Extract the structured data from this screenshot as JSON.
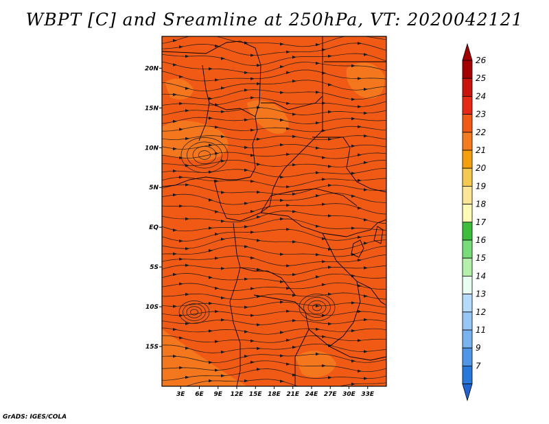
{
  "title": "WBPT [C] and Sreamline at 250hPa, VT: 2020042121",
  "credit": "GrADS: IGES/COLA",
  "map": {
    "lon_range": [
      0,
      36
    ],
    "lat_range": [
      -20,
      24
    ],
    "lat_ticks": [
      {
        "value": 20,
        "label": "20N"
      },
      {
        "value": 15,
        "label": "15N"
      },
      {
        "value": 10,
        "label": "10N"
      },
      {
        "value": 5,
        "label": "5N"
      },
      {
        "value": 0,
        "label": "EQ"
      },
      {
        "value": -5,
        "label": "5S"
      },
      {
        "value": -10,
        "label": "10S"
      },
      {
        "value": -15,
        "label": "15S"
      }
    ],
    "lon_ticks": [
      {
        "value": 3,
        "label": "3E"
      },
      {
        "value": 6,
        "label": "6E"
      },
      {
        "value": 9,
        "label": "9E"
      },
      {
        "value": 12,
        "label": "12E"
      },
      {
        "value": 15,
        "label": "15E"
      },
      {
        "value": 18,
        "label": "18E"
      },
      {
        "value": 21,
        "label": "21E"
      },
      {
        "value": 24,
        "label": "24E"
      },
      {
        "value": 27,
        "label": "27E"
      },
      {
        "value": 30,
        "label": "30E"
      },
      {
        "value": 33,
        "label": "33E"
      }
    ],
    "base_color": "#f05a14",
    "warm_color": "#f57c1e",
    "streamline_color": "#1a1a1a",
    "border_color": "#000000"
  },
  "colorbar": {
    "entries": [
      {
        "label": "26",
        "color": "#a50000"
      },
      {
        "label": "25",
        "color": "#c8140a"
      },
      {
        "label": "24",
        "color": "#e62814"
      },
      {
        "label": "23",
        "color": "#f05a14"
      },
      {
        "label": "22",
        "color": "#f57c1e"
      },
      {
        "label": "21",
        "color": "#f5a00a"
      },
      {
        "label": "20",
        "color": "#f5c850"
      },
      {
        "label": "19",
        "color": "#fae696"
      },
      {
        "label": "18",
        "color": "#fffab4"
      },
      {
        "label": "17",
        "color": "#3cbe3c"
      },
      {
        "label": "16",
        "color": "#78dc78"
      },
      {
        "label": "15",
        "color": "#b4f0aa"
      },
      {
        "label": "14",
        "color": "#e6fff0"
      },
      {
        "label": "13",
        "color": "#b4dcfa"
      },
      {
        "label": "12",
        "color": "#96c8f5"
      },
      {
        "label": "11",
        "color": "#78b4f0"
      },
      {
        "label": "9",
        "color": "#5096e6"
      },
      {
        "label": "7",
        "color": "#2878dc"
      }
    ],
    "bottom_color": "#1e64d2"
  }
}
